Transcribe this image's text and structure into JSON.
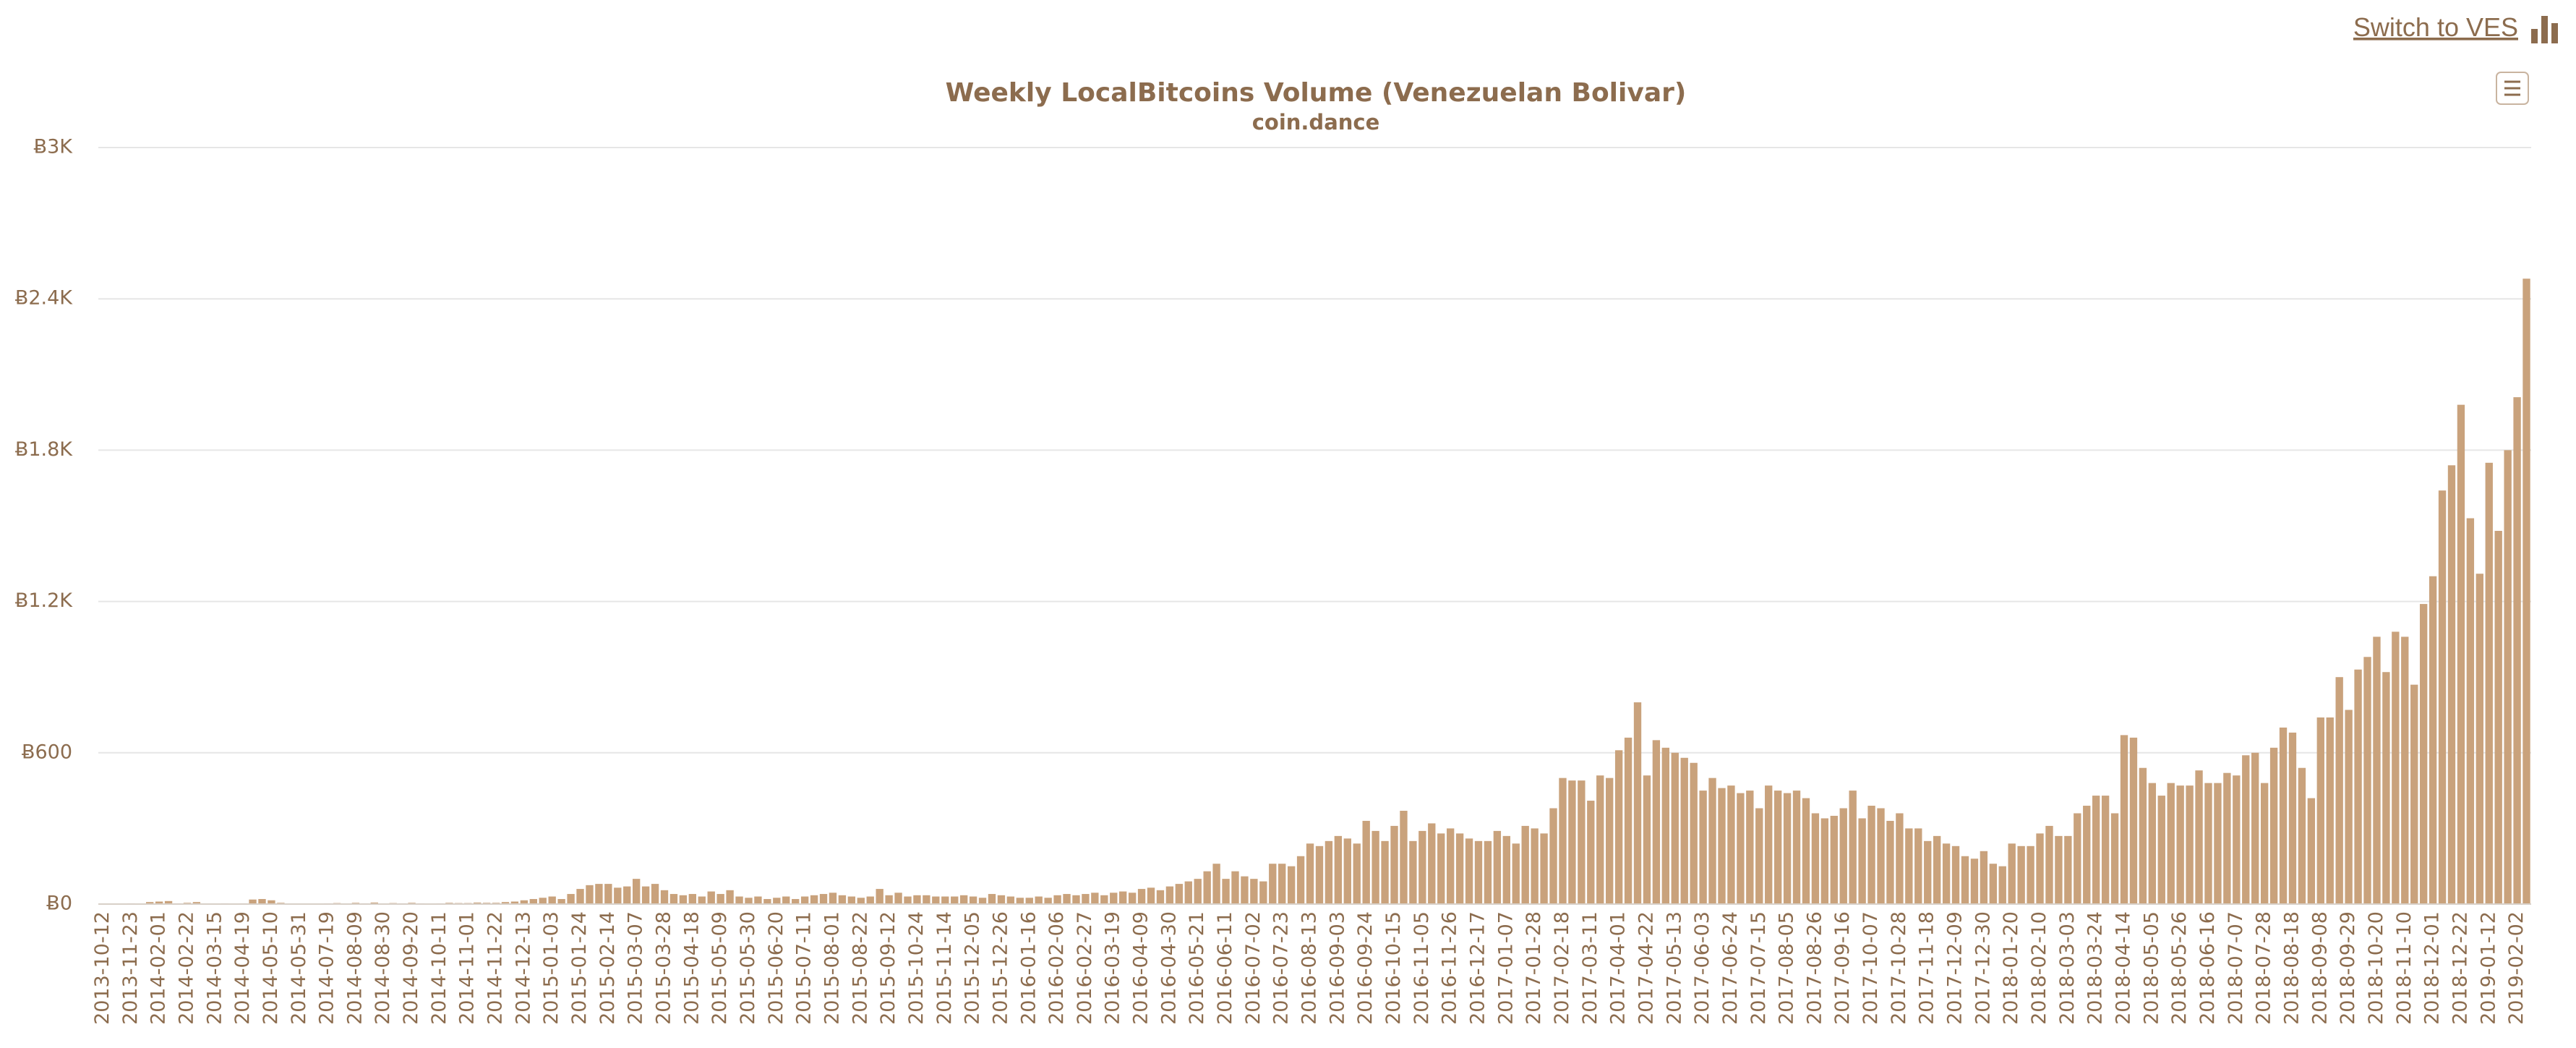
{
  "link": "Switch to VES",
  "chart_data": {
    "type": "bar",
    "title": "Weekly LocalBitcoins Volume (Venezuelan Bolivar)",
    "subtitle": "coin.dance",
    "color": "#c9a27c",
    "grid": true,
    "ylim": [
      0,
      3000
    ],
    "yticks": [
      {
        "value": 0,
        "label": "Ƀ0"
      },
      {
        "value": 600,
        "label": "Ƀ600"
      },
      {
        "value": 1200,
        "label": "Ƀ1.2K"
      },
      {
        "value": 1800,
        "label": "Ƀ1.8K"
      },
      {
        "value": 2400,
        "label": "Ƀ2.4K"
      },
      {
        "value": 3000,
        "label": "Ƀ3K"
      }
    ],
    "categories": [
      "2013-10-12",
      null,
      null,
      "2013-11-23",
      null,
      null,
      "2014-02-01",
      null,
      null,
      "2014-02-22",
      null,
      null,
      "2014-03-15",
      null,
      null,
      "2014-04-19",
      null,
      null,
      "2014-05-10",
      null,
      null,
      "2014-05-31",
      null,
      null,
      "2014-07-19",
      null,
      null,
      "2014-08-09",
      null,
      null,
      "2014-08-30",
      null,
      null,
      "2014-09-20",
      null,
      null,
      "2014-10-11",
      null,
      null,
      "2014-11-01",
      null,
      null,
      "2014-11-22",
      null,
      null,
      "2014-12-13",
      null,
      null,
      "2015-01-03",
      null,
      null,
      "2015-01-24",
      null,
      null,
      "2015-02-14",
      null,
      null,
      "2015-03-07",
      null,
      null,
      "2015-03-28",
      null,
      null,
      "2015-04-18",
      null,
      null,
      "2015-05-09",
      null,
      null,
      "2015-05-30",
      null,
      null,
      "2015-06-20",
      null,
      null,
      "2015-07-11",
      null,
      null,
      "2015-08-01",
      null,
      null,
      "2015-08-22",
      null,
      null,
      "2015-09-12",
      null,
      null,
      "2015-10-24",
      null,
      null,
      "2015-11-14",
      null,
      null,
      "2015-12-05",
      null,
      null,
      "2015-12-26",
      null,
      null,
      "2016-01-16",
      null,
      null,
      "2016-02-06",
      null,
      null,
      "2016-02-27",
      null,
      null,
      "2016-03-19",
      null,
      null,
      "2016-04-09",
      null,
      null,
      "2016-04-30",
      null,
      null,
      "2016-05-21",
      null,
      null,
      "2016-06-11",
      null,
      null,
      "2016-07-02",
      null,
      null,
      "2016-07-23",
      null,
      null,
      "2016-08-13",
      null,
      null,
      "2016-09-03",
      null,
      null,
      "2016-09-24",
      null,
      null,
      "2016-10-15",
      null,
      null,
      "2016-11-05",
      null,
      null,
      "2016-11-26",
      null,
      null,
      "2016-12-17",
      null,
      null,
      "2017-01-07",
      null,
      null,
      "2017-01-28",
      null,
      null,
      "2017-02-18",
      null,
      null,
      "2017-03-11",
      null,
      null,
      "2017-04-01",
      null,
      null,
      "2017-04-22",
      null,
      null,
      "2017-05-13",
      null,
      null,
      "2017-06-03",
      null,
      null,
      "2017-06-24",
      null,
      null,
      "2017-07-15",
      null,
      null,
      "2017-08-05",
      null,
      null,
      "2017-08-26",
      null,
      null,
      "2017-09-16",
      null,
      null,
      "2017-10-07",
      null,
      null,
      "2017-10-28",
      null,
      null,
      "2017-11-18",
      null,
      null,
      "2017-12-09",
      null,
      null,
      "2017-12-30",
      null,
      null,
      "2018-01-20",
      null,
      null,
      "2018-02-10",
      null,
      null,
      "2018-03-03",
      null,
      null,
      "2018-03-24",
      null,
      null,
      "2018-04-14",
      null,
      null,
      "2018-05-05",
      null,
      null,
      "2018-05-26",
      null,
      null,
      "2018-06-16",
      null,
      null,
      "2018-07-07",
      null,
      null,
      "2018-07-28",
      null,
      null,
      "2018-08-18",
      null,
      null,
      "2018-09-08",
      null,
      null,
      "2018-09-29",
      null,
      null,
      "2018-10-20",
      null,
      null,
      "2018-11-10",
      null,
      null,
      "2018-12-01",
      null,
      null,
      "2018-12-22",
      null,
      null,
      "2019-01-12",
      null,
      null,
      "2019-02-02",
      null
    ],
    "values": [
      2,
      1,
      1,
      3,
      2,
      8,
      10,
      12,
      3,
      5,
      8,
      2,
      2,
      3,
      1,
      3,
      18,
      20,
      15,
      5,
      2,
      1,
      2,
      1,
      3,
      4,
      2,
      5,
      3,
      6,
      2,
      4,
      3,
      5,
      3,
      2,
      3,
      5,
      4,
      4,
      6,
      5,
      5,
      8,
      10,
      15,
      20,
      25,
      30,
      20,
      40,
      60,
      75,
      80,
      80,
      65,
      70,
      100,
      70,
      80,
      55,
      40,
      35,
      40,
      30,
      50,
      40,
      55,
      30,
      25,
      30,
      20,
      25,
      30,
      20,
      30,
      35,
      40,
      45,
      35,
      30,
      25,
      30,
      60,
      35,
      45,
      30,
      35,
      35,
      30,
      30,
      30,
      35,
      30,
      25,
      40,
      35,
      30,
      25,
      25,
      30,
      25,
      35,
      40,
      35,
      40,
      45,
      35,
      45,
      50,
      45,
      60,
      65,
      55,
      70,
      80,
      90,
      100,
      130,
      160,
      100,
      130,
      110,
      100,
      90,
      160,
      160,
      150,
      190,
      240,
      230,
      250,
      270,
      260,
      240,
      330,
      290,
      250,
      310,
      370,
      250,
      290,
      320,
      280,
      300,
      280,
      260,
      250,
      250,
      290,
      270,
      240,
      310,
      300,
      280,
      380,
      500,
      490,
      490,
      410,
      510,
      500,
      610,
      660,
      800,
      510,
      650,
      620,
      600,
      580,
      560,
      450,
      500,
      460,
      470,
      440,
      450,
      380,
      470,
      450,
      440,
      450,
      420,
      360,
      340,
      350,
      380,
      450,
      340,
      390,
      380,
      330,
      360,
      300,
      300,
      250,
      270,
      240,
      230,
      190,
      180,
      210,
      160,
      150,
      240,
      230,
      230,
      280,
      310,
      270,
      270,
      360,
      390,
      430,
      430,
      360,
      670,
      660,
      540,
      480,
      430,
      480,
      470,
      470,
      530,
      480,
      480,
      520,
      510,
      590,
      600,
      480,
      620,
      700,
      680,
      540,
      420,
      740,
      740,
      900,
      770,
      930,
      980,
      1060,
      920,
      1080,
      1060,
      870,
      1190,
      1300,
      1640,
      1740,
      1980,
      1530,
      1310,
      1750,
      1480,
      1800,
      2010,
      2480
    ]
  }
}
